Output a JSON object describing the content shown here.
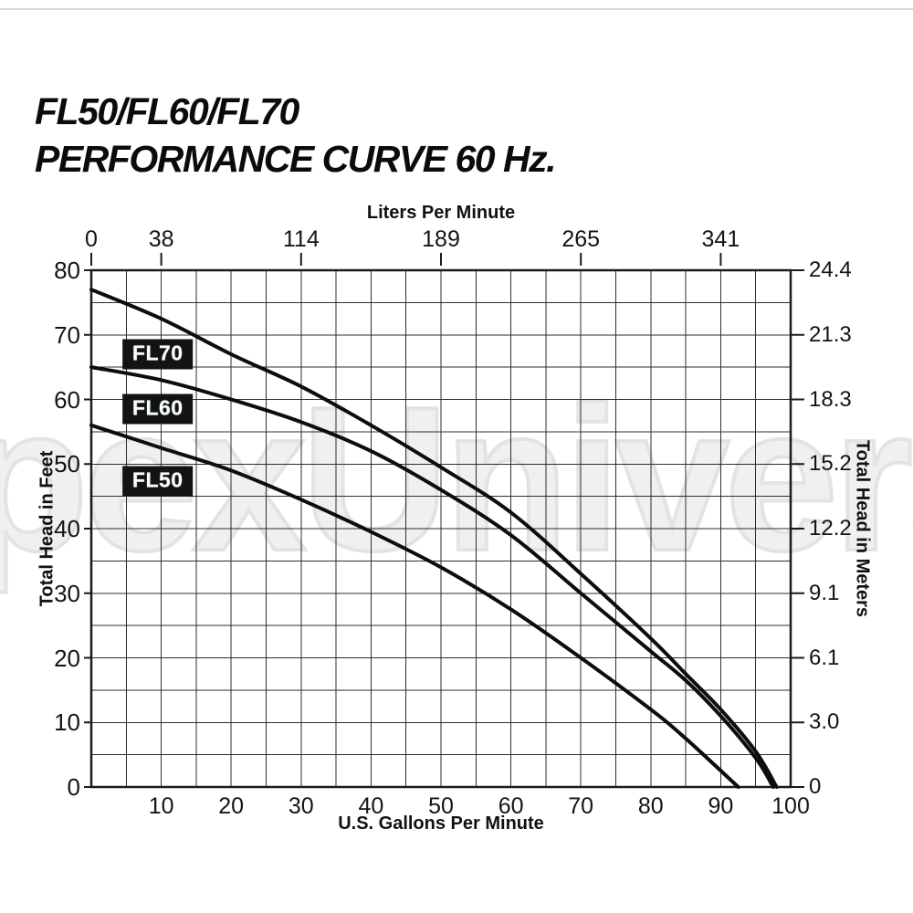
{
  "title": {
    "line1": "FL50/FL60/FL70",
    "line2": "PERFORMANCE CURVE 60 Hz."
  },
  "watermark": "pexUniverse",
  "chart_data": {
    "type": "line",
    "title": "FL50/FL60/FL70 Performance Curve 60 Hz",
    "grid": true,
    "grid_minor_step_gpm": 5,
    "grid_minor_step_ft": 5,
    "top_axis": {
      "label": "Liters Per Minute",
      "ticks": [
        {
          "label": "0",
          "gpm": 0
        },
        {
          "label": "38",
          "gpm": 10
        },
        {
          "label": "114",
          "gpm": 30
        },
        {
          "label": "189",
          "gpm": 50
        },
        {
          "label": "265",
          "gpm": 70
        },
        {
          "label": "341",
          "gpm": 90
        }
      ]
    },
    "bottom_axis": {
      "label": "U.S. Gallons Per Minute",
      "range": [
        0,
        100
      ],
      "ticks": [
        10,
        20,
        30,
        40,
        50,
        60,
        70,
        80,
        90,
        100
      ]
    },
    "left_axis": {
      "label": "Total Head in Feet",
      "range": [
        0,
        80
      ],
      "ticks": [
        80,
        70,
        60,
        50,
        40,
        30,
        20,
        10,
        0
      ]
    },
    "right_axis": {
      "label": "Total Head in Meters",
      "ticks": [
        {
          "label": "24.4",
          "ft": 80
        },
        {
          "label": "21.3",
          "ft": 70
        },
        {
          "label": "18.3",
          "ft": 60
        },
        {
          "label": "15.2",
          "ft": 50
        },
        {
          "label": "12.2",
          "ft": 40
        },
        {
          "label": "9.1",
          "ft": 30
        },
        {
          "label": "6.1",
          "ft": 20
        },
        {
          "label": "3.0",
          "ft": 10
        },
        {
          "label": "0",
          "ft": 0
        }
      ]
    },
    "series": [
      {
        "name": "FL70",
        "label_pos": {
          "gpm": 9.5,
          "ft": 67
        },
        "points": [
          [
            0,
            77
          ],
          [
            10,
            72.5
          ],
          [
            20,
            67
          ],
          [
            30,
            62
          ],
          [
            40,
            56
          ],
          [
            50,
            49.5
          ],
          [
            60,
            42.5
          ],
          [
            70,
            33
          ],
          [
            80,
            23
          ],
          [
            85,
            17.5
          ],
          [
            90,
            12
          ],
          [
            95,
            5.5
          ],
          [
            98,
            0
          ]
        ]
      },
      {
        "name": "FL60",
        "label_pos": {
          "gpm": 9.5,
          "ft": 58.5
        },
        "points": [
          [
            0,
            65
          ],
          [
            10,
            63
          ],
          [
            20,
            60
          ],
          [
            30,
            56.5
          ],
          [
            40,
            52
          ],
          [
            50,
            46
          ],
          [
            60,
            39
          ],
          [
            70,
            30
          ],
          [
            80,
            21
          ],
          [
            85,
            16.5
          ],
          [
            90,
            11
          ],
          [
            95,
            4.5
          ],
          [
            97.5,
            0
          ]
        ]
      },
      {
        "name": "FL50",
        "label_pos": {
          "gpm": 9.5,
          "ft": 47.3
        },
        "points": [
          [
            0,
            56
          ],
          [
            10,
            52.5
          ],
          [
            20,
            49
          ],
          [
            30,
            44.5
          ],
          [
            40,
            39.5
          ],
          [
            50,
            34
          ],
          [
            60,
            27.5
          ],
          [
            70,
            20
          ],
          [
            80,
            12
          ],
          [
            85,
            7.5
          ],
          [
            92.5,
            0
          ]
        ]
      }
    ],
    "colors": {
      "curve": "#0d0d0d",
      "grid": "#2e2e2e",
      "border": "#1a1a1a",
      "label_bg": "#131313",
      "label_fg": "#fcfcfc",
      "watermark": "#e9e9e9"
    }
  }
}
